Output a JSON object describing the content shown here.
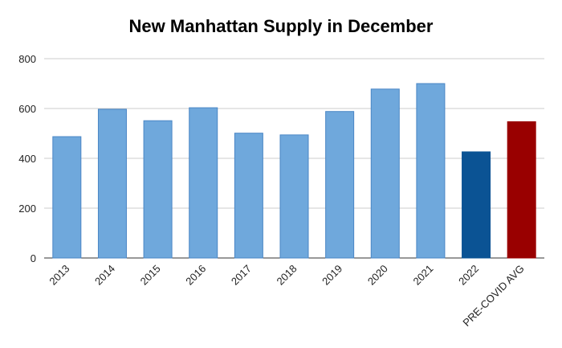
{
  "chart_data": {
    "type": "bar",
    "title": "New Manhattan Supply in December",
    "xlabel": "",
    "ylabel": "",
    "ylim": [
      0,
      800
    ],
    "yticks": [
      0,
      200,
      400,
      600,
      800
    ],
    "grid": true,
    "categories": [
      "2013",
      "2014",
      "2015",
      "2016",
      "2017",
      "2018",
      "2019",
      "2020",
      "2021",
      "2022",
      "PRE-COVID AVG"
    ],
    "values": [
      487,
      597,
      551,
      603,
      501,
      494,
      588,
      678,
      700,
      426,
      547
    ],
    "bar_colors": [
      "#6fa8dc",
      "#6fa8dc",
      "#6fa8dc",
      "#6fa8dc",
      "#6fa8dc",
      "#6fa8dc",
      "#6fa8dc",
      "#6fa8dc",
      "#6fa8dc",
      "#0b5394",
      "#990000"
    ]
  },
  "colors": {
    "grid": "#cccccc",
    "axis": "#333333",
    "bar_stroke": "#4a86c5"
  }
}
